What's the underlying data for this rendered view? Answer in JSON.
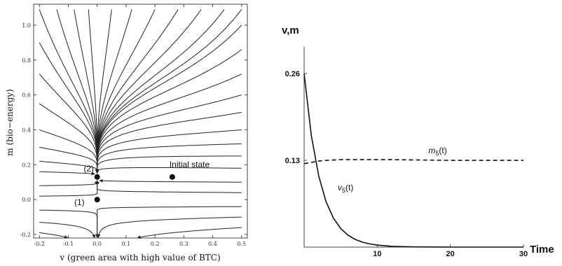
{
  "chart_data": [
    {
      "type": "stream",
      "xlabel": "v (green area with high value of BTC)",
      "ylabel": "m (bio−energy)",
      "xlim": [
        -0.22,
        0.52
      ],
      "ylim": [
        -0.22,
        1.12
      ],
      "xticks": [
        -0.2,
        -0.1,
        0.0,
        0.1,
        0.2,
        0.3,
        0.4,
        0.5
      ],
      "xtick_labels": [
        "-0.2",
        "-0.1",
        "0.0",
        "0.1",
        "0.2",
        "0.3",
        "0.4",
        "0.5"
      ],
      "yticks": [
        -0.2,
        0.0,
        0.2,
        0.4,
        0.6,
        0.8,
        1.0
      ],
      "ytick_labels": [
        "-0.2",
        "0.0",
        "0.2",
        "0.4",
        "0.6",
        "0.8",
        "1.0"
      ],
      "points": [
        {
          "x": 0.0,
          "y": 0.13,
          "label": "(2)"
        },
        {
          "x": 0.0,
          "y": 0.0,
          "label": "(1)"
        },
        {
          "x": 0.26,
          "y": 0.13,
          "label": "Initial state"
        }
      ]
    },
    {
      "type": "line",
      "xlabel": "Time",
      "ylabel": "v,m",
      "xlim": [
        0,
        30
      ],
      "ylim": [
        0,
        0.3
      ],
      "xticks": [
        10,
        20,
        30
      ],
      "xtick_labels": [
        "10",
        "20",
        "30"
      ],
      "yticks": [
        0.13,
        0.26
      ],
      "ytick_labels": [
        "0.13",
        "0.26"
      ],
      "series": [
        {
          "name_base": "m",
          "name_sub": "5",
          "name_tail": "(t)",
          "style": "dashed",
          "x": [
            0,
            1,
            2,
            3,
            5,
            8,
            12,
            20,
            30
          ],
          "y": [
            0.125,
            0.127,
            0.129,
            0.13,
            0.131,
            0.131,
            0.131,
            0.13,
            0.13
          ]
        },
        {
          "name_base": "v",
          "name_sub": "5",
          "name_tail": "(t)",
          "style": "solid",
          "x": [
            0,
            1,
            2,
            3,
            4,
            5,
            6,
            7,
            8,
            9,
            10,
            12,
            15,
            20,
            25,
            30
          ],
          "y": [
            0.26,
            0.1663,
            0.1064,
            0.068,
            0.0435,
            0.0278,
            0.0178,
            0.0114,
            0.0073,
            0.0047,
            0.003,
            0.0012,
            0.0003,
            0.0,
            0.0,
            0.0
          ]
        }
      ]
    }
  ]
}
